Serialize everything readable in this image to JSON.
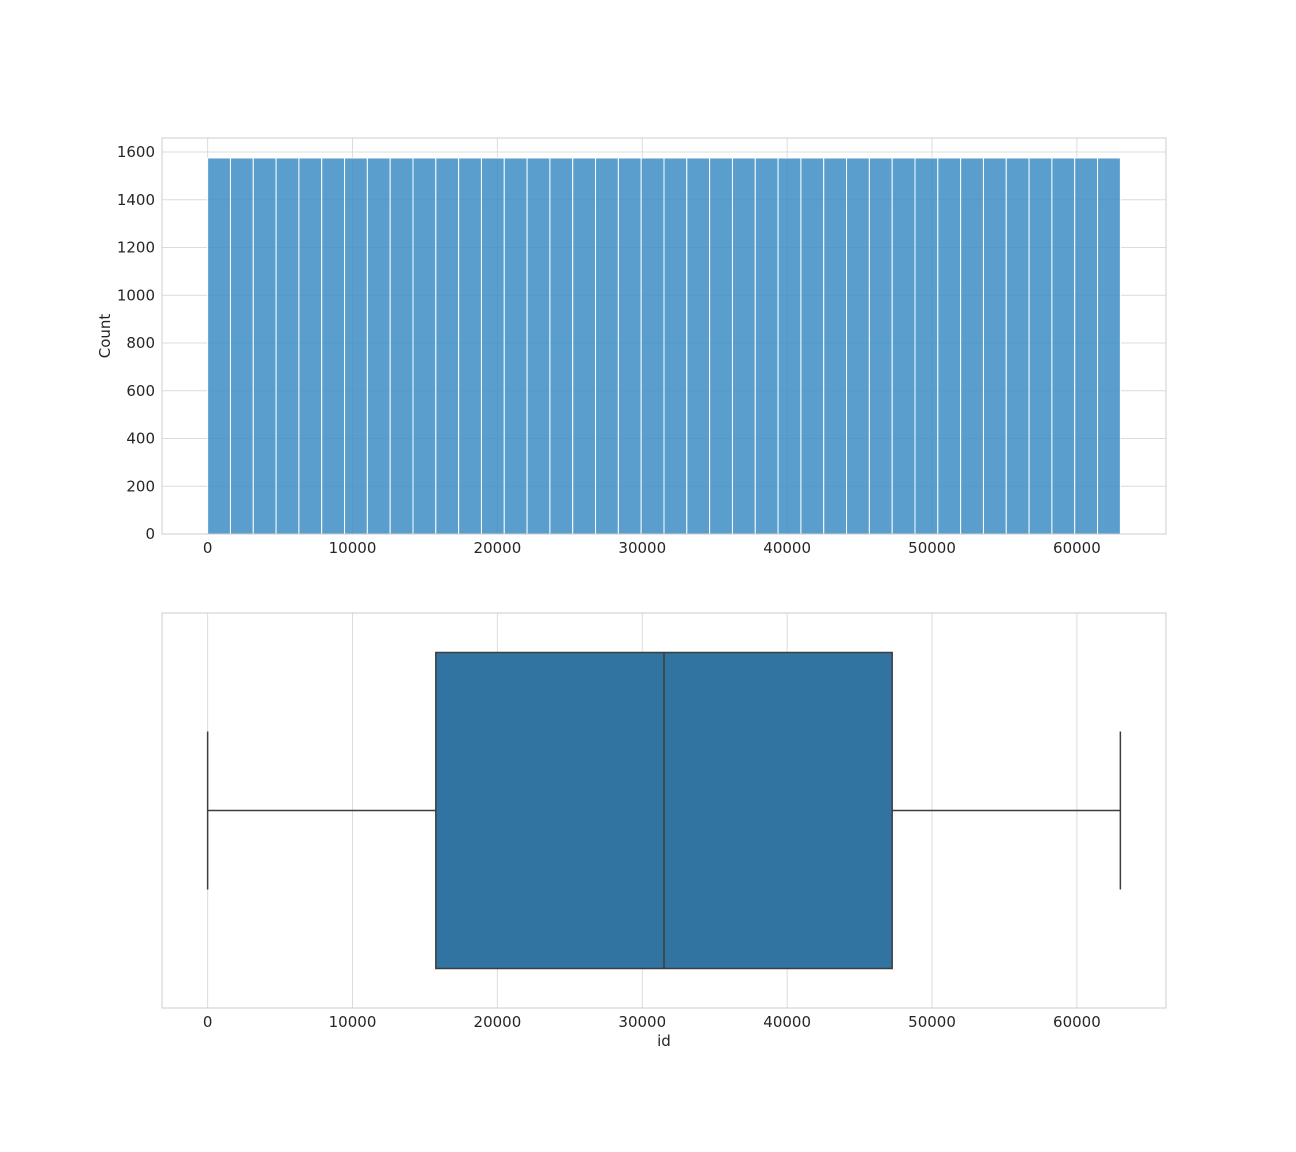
{
  "chart_data": [
    {
      "type": "bar",
      "subtype": "histogram",
      "ylabel": "Count",
      "xlabel": "",
      "xlim": [
        -3150,
        66150
      ],
      "ylim": [
        0,
        1600
      ],
      "xticks": [
        0,
        10000,
        20000,
        30000,
        40000,
        50000,
        60000
      ],
      "yticks": [
        0,
        200,
        400,
        600,
        800,
        1000,
        1200,
        1400,
        1600
      ],
      "bins": {
        "start": 0,
        "end": 63000,
        "count": 40
      },
      "values": [
        1575,
        1575,
        1575,
        1575,
        1575,
        1575,
        1575,
        1575,
        1575,
        1575,
        1575,
        1575,
        1575,
        1575,
        1575,
        1575,
        1575,
        1575,
        1575,
        1575,
        1575,
        1575,
        1575,
        1575,
        1575,
        1575,
        1575,
        1575,
        1575,
        1575,
        1575,
        1575,
        1575,
        1575,
        1575,
        1575,
        1575,
        1575,
        1575,
        1575
      ],
      "color": "#3c8dc4",
      "grid": true
    },
    {
      "type": "box",
      "xlabel": "id",
      "ylabel": "",
      "xlim": [
        -3150,
        66150
      ],
      "xticks": [
        0,
        10000,
        20000,
        30000,
        40000,
        50000,
        60000
      ],
      "stats": {
        "whislo": 0,
        "q1": 15750,
        "median": 31500,
        "q3": 47250,
        "whishi": 63000
      },
      "color": "#3274a1",
      "line_color": "#3d3d3d",
      "grid": true
    }
  ]
}
